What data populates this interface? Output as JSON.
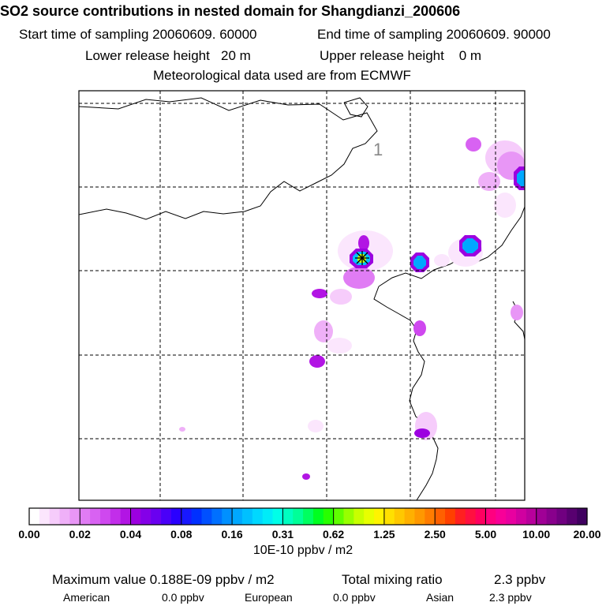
{
  "header": {
    "title": "SO2 source contributions in nested domain for Shangdianzi_200606",
    "start_time": "Start time of sampling 20060609. 60000",
    "end_time": "End time of sampling 20060609. 90000",
    "lower_release": "Lower release height   20 m",
    "upper_release": "Upper release height    0 m",
    "met_data": "Meteorological data used are from ECMWF"
  },
  "chart_data": {
    "type": "heatmap",
    "title": "SO2 source contributions in nested domain for Shangdianzi_200606",
    "colorbar": {
      "tick_labels": [
        "0.00",
        "0.02",
        "0.04",
        "0.08",
        "0.16",
        "0.31",
        "0.62",
        "1.25",
        "2.50",
        "5.00",
        "10.00",
        "20.00"
      ],
      "unit_label": "10E-10 ppbv / m2",
      "colors": [
        "#ffffff",
        "#fbe6fd",
        "#f6ccfb",
        "#efb0f8",
        "#e896f6",
        "#e07cf4",
        "#d862f2",
        "#cf48ef",
        "#c22eea",
        "#b215e4",
        "#9c00e0",
        "#8400e8",
        "#6a00f0",
        "#4a00f8",
        "#2a00ff",
        "#1818ff",
        "#0030ff",
        "#0050ff",
        "#0070ff",
        "#0090ff",
        "#00a8ff",
        "#00c0ff",
        "#00d8ff",
        "#00ecf8",
        "#00ffe8",
        "#00ffc0",
        "#00ff98",
        "#00ff60",
        "#00ff20",
        "#28ff00",
        "#60ff00",
        "#98ff00",
        "#c8ff00",
        "#e8ff00",
        "#fff400",
        "#ffe000",
        "#ffc800",
        "#ffb000",
        "#ff9800",
        "#ff7c00",
        "#ff6000",
        "#ff4000",
        "#ff2020",
        "#ff1040",
        "#ff0060",
        "#ff0080",
        "#f80098",
        "#e800a0",
        "#d000a0",
        "#b8009c",
        "#a00096",
        "#88008c",
        "#700080",
        "#580070",
        "#400060"
      ]
    },
    "receptor": "Shangdianzi",
    "grid_label": "1",
    "plumes": [
      {
        "name": "receptor-plume",
        "level": "0.62-1.25"
      },
      {
        "name": "east-plume-1",
        "level": "0.08-0.16"
      },
      {
        "name": "east-plume-2",
        "level": "0.08-0.16"
      },
      {
        "name": "east-plume-3",
        "level": "0.08-0.16"
      }
    ]
  },
  "footer": {
    "max_value": "Maximum value  0.188E-09 ppbv / m2",
    "total_mixing": "Total mixing ratio",
    "total_value": "2.3 ppbv",
    "american_label": "American",
    "american_value": "0.0 ppbv",
    "european_label": "European",
    "european_value": "0.0 ppbv",
    "asian_label": "Asian",
    "asian_value": "2.3 ppbv"
  }
}
